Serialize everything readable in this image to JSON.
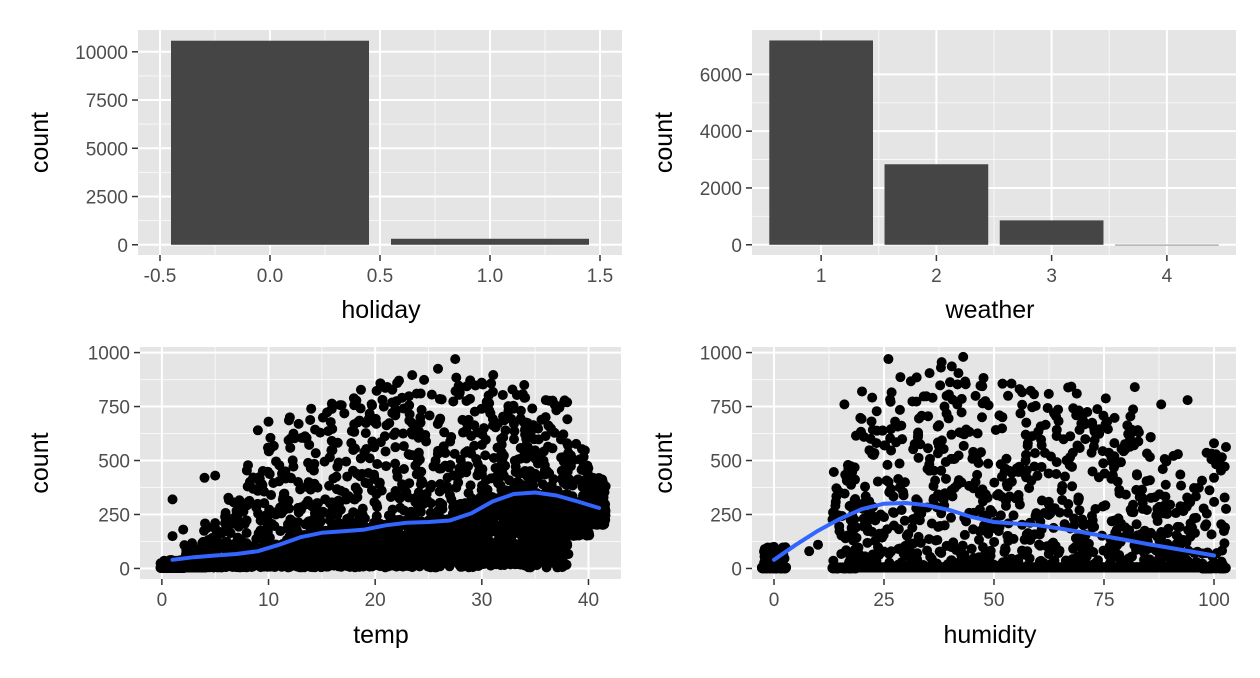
{
  "colors": {
    "panel_background": "#e5e5e5",
    "grid_major": "#ffffff",
    "bar_fill": "#454545",
    "point": "#000000",
    "smooth_line": "#3366ff",
    "tick_text": "#4d4d4d"
  },
  "chart_data": [
    {
      "id": "holiday",
      "type": "bar",
      "xlabel": "holiday",
      "ylabel": "count",
      "xlim": [
        -0.5,
        1.5
      ],
      "ylim": [
        0,
        10600
      ],
      "xticks": [
        -0.5,
        0.0,
        0.5,
        1.0,
        1.5
      ],
      "xtick_labels": [
        "-0.5",
        "0.0",
        "0.5",
        "1.0",
        "1.5"
      ],
      "yticks": [
        0,
        2500,
        5000,
        7500,
        10000
      ],
      "ytick_labels": [
        "0",
        "2500",
        "5000",
        "7500",
        "10000"
      ],
      "grid": true,
      "bar_width": 0.9,
      "x": [
        0,
        1
      ],
      "values": [
        10575,
        311
      ]
    },
    {
      "id": "weather",
      "type": "bar",
      "xlabel": "weather",
      "ylabel": "count",
      "xlim": [
        0.5,
        4.5
      ],
      "ylim": [
        0,
        7200
      ],
      "xticks": [
        1,
        2,
        3,
        4
      ],
      "xtick_labels": [
        "1",
        "2",
        "3",
        "4"
      ],
      "yticks": [
        0,
        2000,
        4000,
        6000
      ],
      "ytick_labels": [
        "0",
        "2000",
        "4000",
        "6000"
      ],
      "grid": true,
      "bar_width": 0.9,
      "x": [
        1,
        2,
        3,
        4
      ],
      "values": [
        7192,
        2834,
        859,
        1
      ]
    },
    {
      "id": "temp",
      "type": "scatter",
      "xlabel": "temp",
      "ylabel": "count",
      "xlim": [
        0,
        41
      ],
      "ylim": [
        0,
        977
      ],
      "xticks": [
        0,
        10,
        20,
        30,
        40
      ],
      "xtick_labels": [
        "0",
        "10",
        "20",
        "30",
        "40"
      ],
      "yticks": [
        0,
        250,
        500,
        750,
        1000
      ],
      "ytick_labels": [
        "0",
        "250",
        "500",
        "750",
        "1000"
      ],
      "grid": true,
      "point_density": [
        [
          1,
          5,
          2,
          40
        ],
        [
          3,
          5,
          5,
          120
        ],
        [
          5,
          5,
          25,
          220
        ],
        [
          7,
          5,
          50,
          330
        ],
        [
          9,
          5,
          80,
          480
        ],
        [
          11,
          5,
          110,
          620
        ],
        [
          13,
          5,
          150,
          700
        ],
        [
          15,
          5,
          170,
          760
        ],
        [
          17,
          5,
          180,
          800
        ],
        [
          19,
          5,
          190,
          830
        ],
        [
          21,
          5,
          200,
          860
        ],
        [
          23,
          5,
          210,
          900
        ],
        [
          25,
          5,
          220,
          940
        ],
        [
          27,
          5,
          230,
          970
        ],
        [
          29,
          5,
          260,
          960
        ],
        [
          31,
          5,
          300,
          900
        ],
        [
          33,
          5,
          330,
          860
        ],
        [
          35,
          5,
          340,
          830
        ],
        [
          37,
          5,
          330,
          780
        ],
        [
          39,
          150,
          290,
          580
        ],
        [
          40.5,
          200,
          290,
          420
        ]
      ],
      "outlier_points": [
        [
          1,
          320
        ],
        [
          1,
          150
        ],
        [
          2,
          180
        ],
        [
          4,
          420
        ],
        [
          5,
          430
        ],
        [
          9,
          640
        ],
        [
          10,
          680
        ],
        [
          12,
          700
        ],
        [
          14,
          740
        ],
        [
          36,
          780
        ],
        [
          38,
          770
        ],
        [
          38,
          580
        ],
        [
          41,
          300
        ]
      ],
      "smooth": {
        "x": [
          1,
          3,
          5,
          7,
          9,
          11,
          13,
          15,
          17,
          19,
          21,
          23,
          25,
          27,
          29,
          31,
          33,
          35,
          37,
          39,
          41
        ],
        "y": [
          40,
          52,
          60,
          67,
          80,
          110,
          145,
          165,
          172,
          180,
          200,
          212,
          215,
          222,
          255,
          310,
          345,
          352,
          338,
          310,
          280
        ]
      }
    },
    {
      "id": "humidity",
      "type": "scatter",
      "xlabel": "humidity",
      "ylabel": "count",
      "xlim": [
        0,
        100
      ],
      "ylim": [
        0,
        977
      ],
      "xticks": [
        0,
        25,
        50,
        75,
        100
      ],
      "xtick_labels": [
        "0",
        "25",
        "50",
        "75",
        "100"
      ],
      "yticks": [
        0,
        250,
        500,
        750,
        1000
      ],
      "ytick_labels": [
        "0",
        "250",
        "500",
        "750",
        "1000"
      ],
      "grid": true,
      "point_density": [
        [
          0,
          5,
          0,
          110
        ],
        [
          16,
          5,
          0,
          500
        ],
        [
          20,
          5,
          5,
          700
        ],
        [
          25,
          5,
          5,
          860
        ],
        [
          30,
          5,
          5,
          930
        ],
        [
          35,
          5,
          5,
          950
        ],
        [
          40,
          5,
          5,
          960
        ],
        [
          45,
          5,
          5,
          930
        ],
        [
          50,
          5,
          5,
          900
        ],
        [
          55,
          5,
          5,
          880
        ],
        [
          60,
          5,
          5,
          880
        ],
        [
          65,
          5,
          5,
          850
        ],
        [
          70,
          5,
          5,
          820
        ],
        [
          75,
          5,
          5,
          800
        ],
        [
          80,
          5,
          5,
          760
        ],
        [
          85,
          5,
          5,
          660
        ],
        [
          90,
          5,
          5,
          560
        ],
        [
          94,
          5,
          5,
          440
        ],
        [
          100,
          5,
          0,
          590
        ]
      ],
      "outlier_points": [
        [
          0,
          100
        ],
        [
          0,
          60
        ],
        [
          0,
          20
        ],
        [
          8,
          80
        ],
        [
          10,
          110
        ],
        [
          16,
          760
        ],
        [
          20,
          820
        ],
        [
          26,
          970
        ],
        [
          43,
          980
        ],
        [
          82,
          840
        ],
        [
          88,
          760
        ],
        [
          94,
          780
        ],
        [
          100,
          580
        ],
        [
          100,
          500
        ],
        [
          100,
          420
        ]
      ],
      "smooth": {
        "x": [
          0,
          5,
          10,
          15,
          20,
          25,
          30,
          35,
          40,
          45,
          50,
          55,
          60,
          65,
          70,
          75,
          80,
          85,
          90,
          95,
          100
        ],
        "y": [
          40,
          110,
          175,
          230,
          275,
          300,
          303,
          292,
          270,
          238,
          215,
          208,
          200,
          185,
          168,
          150,
          132,
          113,
          95,
          78,
          60
        ]
      }
    }
  ]
}
